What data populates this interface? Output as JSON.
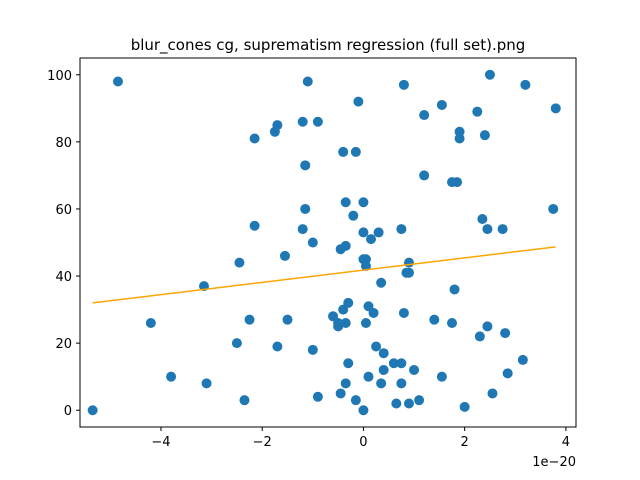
{
  "chart_data": {
    "type": "scatter",
    "title": "blur_cones cg, suprematism regression (full set).png",
    "xlabel": "",
    "ylabel": "",
    "x_offset_label": "1e−20",
    "x_scale_exponent": -20,
    "xlim": [
      -5.6e-20,
      4.2e-20
    ],
    "ylim": [
      -5,
      105
    ],
    "x_ticks": [
      -4e-20,
      -2e-20,
      0,
      2e-20,
      4e-20
    ],
    "x_tick_labels": [
      "−4",
      "−2",
      "0",
      "2",
      "4"
    ],
    "y_ticks": [
      0,
      20,
      40,
      60,
      80,
      100
    ],
    "y_tick_labels": [
      "0",
      "20",
      "40",
      "60",
      "80",
      "100"
    ],
    "grid": false,
    "series": [
      {
        "kind": "scatter",
        "color": "#1f77b4",
        "points": [
          [
            -5.35e-20,
            0
          ],
          [
            -4.85e-20,
            98
          ],
          [
            -4.2e-20,
            26
          ],
          [
            -3.8e-20,
            10
          ],
          [
            -3.15e-20,
            37
          ],
          [
            -3.1e-20,
            8
          ],
          [
            -2.5e-20,
            20
          ],
          [
            -2.45e-20,
            44
          ],
          [
            -2.35e-20,
            3
          ],
          [
            -2.25e-20,
            27
          ],
          [
            -2.15e-20,
            81
          ],
          [
            -2.15e-20,
            55
          ],
          [
            -1.75e-20,
            83
          ],
          [
            -1.7e-20,
            85
          ],
          [
            -1.7e-20,
            19
          ],
          [
            -1.55e-20,
            46
          ],
          [
            -1.5e-20,
            27
          ],
          [
            -1.2e-20,
            86
          ],
          [
            -1.15e-20,
            73
          ],
          [
            -1.15e-20,
            60
          ],
          [
            -1.2e-20,
            54
          ],
          [
            -1.1e-20,
            98
          ],
          [
            -1e-20,
            50
          ],
          [
            -1e-20,
            18
          ],
          [
            -9e-21,
            86
          ],
          [
            -9e-21,
            4
          ],
          [
            -6e-21,
            28
          ],
          [
            -5e-21,
            26
          ],
          [
            -5e-21,
            25
          ],
          [
            -4.5e-21,
            48
          ],
          [
            -4.5e-21,
            5
          ],
          [
            -4e-21,
            77
          ],
          [
            -4e-21,
            30
          ],
          [
            -3.5e-21,
            49
          ],
          [
            -3.5e-21,
            62
          ],
          [
            -3.5e-21,
            26
          ],
          [
            -3.5e-21,
            8
          ],
          [
            -3e-21,
            32
          ],
          [
            -3e-21,
            14
          ],
          [
            -2e-21,
            58
          ],
          [
            -1.5e-21,
            77
          ],
          [
            -1.5e-21,
            3
          ],
          [
            -1e-21,
            92
          ],
          [
            0.0,
            62
          ],
          [
            0.0,
            53
          ],
          [
            0.0,
            45
          ],
          [
            0.0,
            0
          ],
          [
            5e-22,
            45
          ],
          [
            5e-22,
            43
          ],
          [
            5e-22,
            26
          ],
          [
            1e-21,
            31
          ],
          [
            1e-21,
            10
          ],
          [
            1.5e-21,
            51
          ],
          [
            2e-21,
            29
          ],
          [
            2.5e-21,
            19
          ],
          [
            3e-21,
            53
          ],
          [
            3.5e-21,
            38
          ],
          [
            3.5e-21,
            8
          ],
          [
            4e-21,
            17
          ],
          [
            4e-21,
            12
          ],
          [
            6e-21,
            14
          ],
          [
            6.5e-21,
            2
          ],
          [
            7.5e-21,
            54
          ],
          [
            7.5e-21,
            14
          ],
          [
            7.5e-21,
            8
          ],
          [
            8e-21,
            97
          ],
          [
            8e-21,
            29
          ],
          [
            8.5e-21,
            41
          ],
          [
            9e-21,
            44
          ],
          [
            9e-21,
            41
          ],
          [
            9e-21,
            2
          ],
          [
            1e-20,
            12
          ],
          [
            1.1e-20,
            3
          ],
          [
            1.2e-20,
            88
          ],
          [
            1.2e-20,
            70
          ],
          [
            1.4e-20,
            27
          ],
          [
            1.55e-20,
            91
          ],
          [
            1.55e-20,
            10
          ],
          [
            1.75e-20,
            26
          ],
          [
            1.75e-20,
            68
          ],
          [
            1.8e-20,
            36
          ],
          [
            1.85e-20,
            68
          ],
          [
            1.9e-20,
            83
          ],
          [
            1.9e-20,
            81
          ],
          [
            2e-20,
            1
          ],
          [
            2.25e-20,
            89
          ],
          [
            2.3e-20,
            22
          ],
          [
            2.35e-20,
            57
          ],
          [
            2.4e-20,
            82
          ],
          [
            2.45e-20,
            54
          ],
          [
            2.45e-20,
            25
          ],
          [
            2.5e-20,
            100
          ],
          [
            2.55e-20,
            5
          ],
          [
            2.75e-20,
            54
          ],
          [
            2.8e-20,
            23
          ],
          [
            2.85e-20,
            11
          ],
          [
            3.15e-20,
            15
          ],
          [
            3.2e-20,
            97
          ],
          [
            3.75e-20,
            60
          ],
          [
            3.8e-20,
            90
          ]
        ]
      },
      {
        "kind": "line",
        "color": "#ffa500",
        "points": [
          [
            -5.35e-20,
            32
          ],
          [
            3.8e-20,
            48.7
          ]
        ]
      }
    ]
  }
}
